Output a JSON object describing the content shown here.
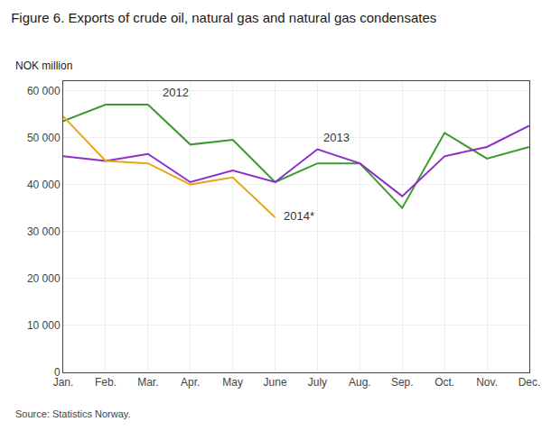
{
  "chart_data": {
    "type": "line",
    "title": "Figure 6. Exports of crude oil, natural gas and natural gas condensates",
    "ylabel": "NOK million",
    "source": "Source: Statistics Norway.",
    "categories": [
      "Jan.",
      "Feb.",
      "Mar.",
      "Apr.",
      "May",
      "June",
      "July",
      "Aug.",
      "Sep.",
      "Oct.",
      "Nov.",
      "Dec."
    ],
    "series": [
      {
        "name": "2012",
        "color": "#3a9a2e",
        "values": [
          53500,
          57000,
          57000,
          48500,
          49500,
          40500,
          44500,
          44500,
          35000,
          51000,
          45500,
          48000
        ]
      },
      {
        "name": "2013",
        "color": "#8b2fc9",
        "values": [
          46000,
          45000,
          46500,
          40500,
          43000,
          40500,
          47500,
          44500,
          37500,
          46000,
          48000,
          52500
        ]
      },
      {
        "name": "2014*",
        "color": "#e6a817",
        "values": [
          54500,
          45000,
          44500,
          40000,
          41500,
          33000,
          null,
          null,
          null,
          null,
          null,
          null
        ]
      }
    ],
    "ylim": [
      0,
      62000
    ],
    "yticks": [
      0,
      {
        "value": 10000,
        "label": "10 000"
      },
      {
        "value": 20000,
        "label": "20 000"
      },
      {
        "value": 30000,
        "label": "30 000"
      },
      {
        "value": 40000,
        "label": "40 000"
      },
      {
        "value": 50000,
        "label": "50 000"
      },
      {
        "value": 60000,
        "label": "60 000"
      }
    ],
    "annotations": [
      {
        "text": "2012",
        "x": 2.3,
        "y": 57800
      },
      {
        "text": "2013",
        "x": 6.1,
        "y": 48200
      },
      {
        "text": "2014*",
        "x": 5.15,
        "y": 31500
      }
    ],
    "grid": true
  }
}
